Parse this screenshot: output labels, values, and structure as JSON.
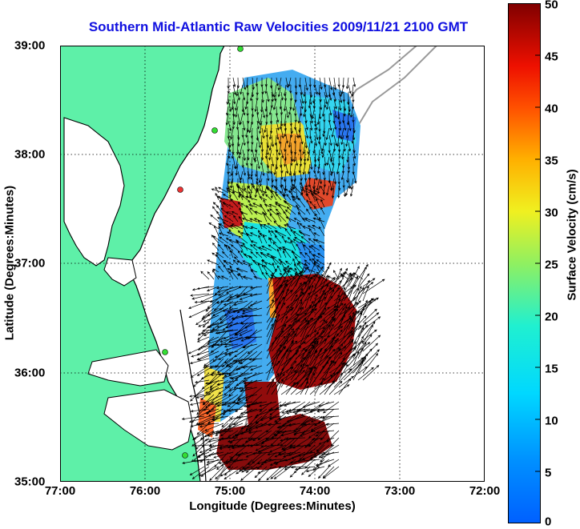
{
  "title": "Southern Mid-Atlantic Raw Velocities 2009/11/21 2100 GMT",
  "x_axis": {
    "label": "Longitude (Degrees:Minutes)",
    "ticks": [
      "77:00",
      "76:00",
      "75:00",
      "74:00",
      "73:00",
      "72:00"
    ]
  },
  "y_axis": {
    "label": "Latitude (Degrees:Minutes)",
    "ticks": [
      "39:00",
      "38:00",
      "37:00",
      "36:00",
      "35:00"
    ]
  },
  "colorbar": {
    "label": "Surface Velocity (cm/s)",
    "ticks": [
      "50",
      "45",
      "40",
      "35",
      "30",
      "25",
      "20",
      "15",
      "10",
      "5",
      "0"
    ],
    "min": 0,
    "max": 50,
    "colormap": "jet"
  },
  "colors": {
    "land": "#5ef0a8",
    "title": "#1010e0",
    "stations": "#33dd33",
    "station_active": "#ee3333"
  },
  "map": {
    "lon_range": [
      "77:00",
      "72:00"
    ],
    "lat_range": [
      "35:00",
      "39:00"
    ],
    "grid": "dotted",
    "vectors": "black arrows"
  }
}
